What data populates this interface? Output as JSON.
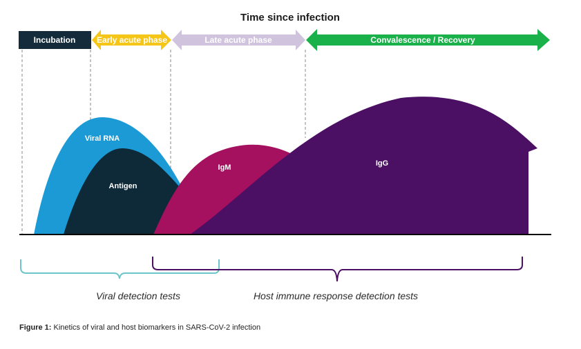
{
  "title": "Time since infection",
  "phases": {
    "incubation": "Incubation",
    "early_acute": "Early acute phase",
    "late_acute": "Late acute phase",
    "convalescence": "Convalescence / Recovery"
  },
  "curves": {
    "viral_rna": "Viral RNA",
    "antigen": "Antigen",
    "igm": "IgM",
    "igg": "IgG"
  },
  "tests": {
    "viral": "Viral detection tests",
    "host": "Host immune response detection tests"
  },
  "caption": {
    "label": "Figure 1:",
    "text": " Kinetics of viral and host biomarkers in SARS-CoV-2 infection"
  },
  "colors": {
    "incubation": "#142b3c",
    "early_acute": "#f5c518",
    "late_acute": "#d0c3dd",
    "convalescence": "#1ab04a",
    "viral_rna": "#1b9ad6",
    "antigen": "#0e2a38",
    "igm": "#a5105f",
    "igg": "#4b0f63",
    "viral_bracket": "#6cc5c8",
    "host_bracket": "#4b0f63"
  }
}
